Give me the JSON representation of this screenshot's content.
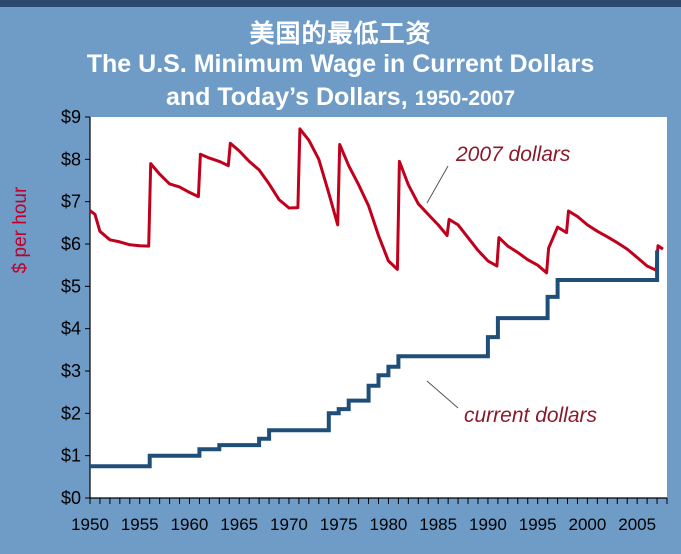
{
  "header": {
    "title_cn": "美国的最低工资",
    "title_line1": "The U.S. Minimum Wage in Current Dollars",
    "title_line2": "and Today’s Dollars, ",
    "title_years": "1950-2007"
  },
  "colors": {
    "background": "#6e9cc6",
    "plot_area": "#ffffff",
    "real_series": "#c0001c",
    "nominal_series": "#1f4e79",
    "annotation_text": "#8b1a2c"
  },
  "chart_data": {
    "type": "line",
    "title": "The U.S. Minimum Wage in Current Dollars and Today’s Dollars, 1950-2007",
    "ylabel": "$ per hour",
    "xlabel": "",
    "xlim": [
      1950,
      2008
    ],
    "ylim": [
      0,
      9
    ],
    "x_ticks": [
      "1950",
      "1955",
      "1960",
      "1965",
      "1970",
      "1975",
      "1980",
      "1985",
      "1990",
      "1995",
      "2000",
      "2005"
    ],
    "y_ticks": [
      "$0",
      "$1",
      "$2",
      "$3",
      "$4",
      "$5",
      "$6",
      "$7",
      "$8",
      "$9"
    ],
    "grid": false,
    "legend": "inline annotations",
    "annotations": [
      {
        "text": "2007 dollars",
        "series": "2007 dollars"
      },
      {
        "text": "current dollars",
        "series": "current dollars"
      }
    ],
    "series": [
      {
        "name": "2007 dollars",
        "x": [
          1950,
          1950.5,
          1951,
          1952,
          1953,
          1954,
          1955,
          1955.9,
          1956.1,
          1957,
          1958,
          1959,
          1960,
          1960.9,
          1961.1,
          1962,
          1963,
          1963.9,
          1964.1,
          1965,
          1966,
          1967,
          1968,
          1969,
          1970,
          1970.9,
          1971.1,
          1972,
          1973,
          1974,
          1974.9,
          1975.1,
          1976,
          1977,
          1978,
          1979,
          1980,
          1980.9,
          1981.1,
          1982,
          1983,
          1984,
          1985,
          1985.9,
          1986.1,
          1987,
          1988,
          1989,
          1990,
          1990.9,
          1991.1,
          1992,
          1993,
          1994,
          1995,
          1995.9,
          1996.1,
          1997,
          1997.9,
          1998.1,
          1999,
          2000,
          2001,
          2002,
          2003,
          2004,
          2005,
          2006,
          2006.9,
          2007.1,
          2007.6
        ],
        "y": [
          6.79,
          6.7,
          6.3,
          6.1,
          6.05,
          5.98,
          5.96,
          5.95,
          7.9,
          7.65,
          7.42,
          7.35,
          7.22,
          7.12,
          8.12,
          8.03,
          7.95,
          7.85,
          8.38,
          8.2,
          7.95,
          7.75,
          7.42,
          7.05,
          6.85,
          6.86,
          8.72,
          8.45,
          8.0,
          7.2,
          6.45,
          8.35,
          7.85,
          7.4,
          6.9,
          6.2,
          5.6,
          5.4,
          7.95,
          7.4,
          6.95,
          6.7,
          6.45,
          6.2,
          6.58,
          6.45,
          6.15,
          5.85,
          5.6,
          5.48,
          6.15,
          5.95,
          5.8,
          5.63,
          5.5,
          5.32,
          5.9,
          6.4,
          6.27,
          6.78,
          6.65,
          6.45,
          6.3,
          6.17,
          6.03,
          5.88,
          5.68,
          5.48,
          5.38,
          5.96,
          5.88
        ]
      },
      {
        "name": "current dollars",
        "x": [
          1950,
          1956,
          1961,
          1963,
          1967,
          1968,
          1974,
          1975,
          1976,
          1978,
          1979,
          1980,
          1981,
          1990,
          1991,
          1996,
          1997,
          2007
        ],
        "y": [
          0.75,
          1.0,
          1.15,
          1.25,
          1.4,
          1.6,
          2.0,
          2.1,
          2.3,
          2.65,
          2.9,
          3.1,
          3.35,
          3.8,
          4.25,
          4.75,
          5.15,
          5.85
        ]
      }
    ]
  }
}
